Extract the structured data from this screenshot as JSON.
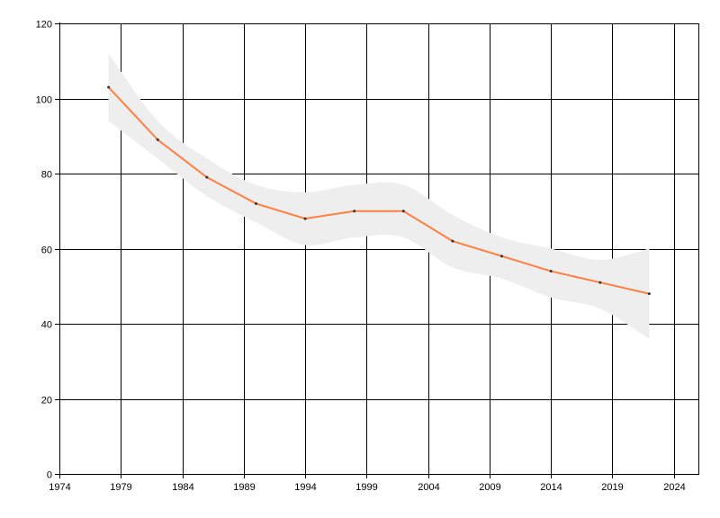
{
  "chart_data": {
    "type": "line",
    "title": "",
    "xlabel": "",
    "ylabel": "",
    "xlim": [
      1974,
      2026
    ],
    "ylim": [
      0,
      120
    ],
    "x_ticks": [
      1974,
      1979,
      1984,
      1989,
      1994,
      1999,
      2004,
      2009,
      2014,
      2019,
      2024
    ],
    "y_ticks": [
      0,
      20,
      40,
      60,
      80,
      100,
      120
    ],
    "grid": true,
    "legend": "none",
    "series": [
      {
        "x": [
          1978,
          1982,
          1986,
          1990,
          1994,
          1998,
          2002,
          2006,
          2010,
          2014,
          2018,
          2022
        ],
        "values": [
          103,
          89,
          79,
          72,
          68,
          70,
          70,
          62,
          58,
          54,
          51,
          48
        ],
        "color": "#ff7f3f",
        "marker_color": "#333333",
        "band_upper": [
          112,
          94,
          84,
          77,
          75,
          77,
          77,
          69,
          63,
          60,
          57,
          60
        ],
        "band_lower": [
          94,
          84,
          74,
          67,
          61,
          63,
          63,
          55,
          52,
          47,
          44,
          36
        ],
        "band_color": "#eeeeee"
      }
    ]
  }
}
